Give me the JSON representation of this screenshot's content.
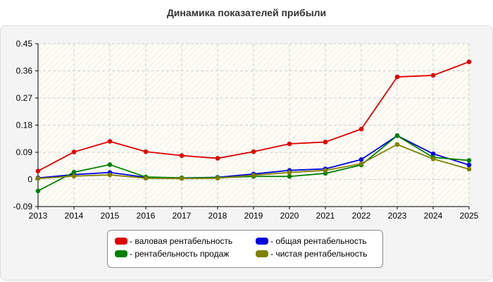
{
  "chart_data": {
    "type": "line",
    "title": "Динамика показателей прибыли",
    "xlabel": "",
    "ylabel": "",
    "x": [
      2013,
      2014,
      2015,
      2016,
      2017,
      2018,
      2019,
      2020,
      2021,
      2022,
      2023,
      2024,
      2025
    ],
    "ylim": [
      -0.09,
      0.45
    ],
    "yticks": [
      "-0.09",
      "0",
      "0.09",
      "0.18",
      "0.27",
      "0.36",
      "0.45"
    ],
    "ytick_values": [
      -0.09,
      0,
      0.09,
      0.18,
      0.27,
      0.36,
      0.45
    ],
    "grid": true,
    "legend_position": "bottom",
    "series": [
      {
        "name": "- валовая рентабельность",
        "color": "#e00000",
        "values": [
          0.028,
          0.091,
          0.126,
          0.092,
          0.079,
          0.07,
          0.092,
          0.118,
          0.124,
          0.167,
          0.34,
          0.345,
          0.39
        ]
      },
      {
        "name": "- общая рентабельность",
        "color": "#0000e0",
        "values": [
          0.005,
          0.016,
          0.023,
          0.007,
          0.005,
          0.007,
          0.018,
          0.03,
          0.035,
          0.066,
          0.145,
          0.085,
          0.048
        ]
      },
      {
        "name": "- рентабельность продаж",
        "color": "#008000",
        "values": [
          -0.038,
          0.024,
          0.049,
          0.008,
          0.005,
          0.006,
          0.01,
          0.01,
          0.02,
          0.048,
          0.145,
          0.073,
          0.063
        ]
      },
      {
        "name": "- чистая рентабельность",
        "color": "#808000",
        "values": [
          0.003,
          0.011,
          0.015,
          0.004,
          0.003,
          0.004,
          0.014,
          0.023,
          0.03,
          0.052,
          0.116,
          0.068,
          0.034
        ]
      }
    ]
  }
}
